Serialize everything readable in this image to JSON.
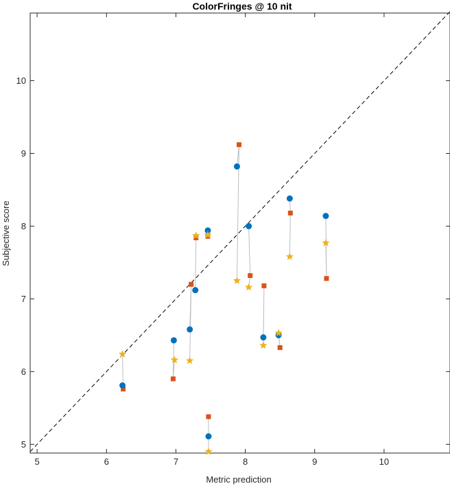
{
  "chart_data": {
    "type": "scatter",
    "title": "ColorFringes @ 10 nit",
    "xlabel": "Metric prediction",
    "ylabel": "Subjective score",
    "xlim": [
      4.9,
      10.95
    ],
    "ylim": [
      4.88,
      10.93
    ],
    "xticks": [
      5,
      6,
      7,
      8,
      9,
      10
    ],
    "yticks": [
      5,
      6,
      7,
      8,
      9,
      10
    ],
    "grid": false,
    "reference_line": {
      "style": "dashed",
      "from": [
        4.9,
        4.9
      ],
      "to": [
        10.95,
        10.95
      ]
    },
    "colors": {
      "circle": "#0072BD",
      "square": "#D95319",
      "star": "#EDB120",
      "connector": "#BDBDBD",
      "reference": "#000000"
    },
    "groups": [
      {
        "circle": [
          6.23,
          5.81
        ],
        "square": [
          6.24,
          5.76
        ],
        "star": [
          6.23,
          6.24
        ]
      },
      {
        "circle": [
          6.97,
          6.43
        ],
        "square": [
          6.96,
          5.9
        ],
        "star": [
          6.98,
          6.16
        ]
      },
      {
        "circle": [
          7.2,
          6.58
        ],
        "square": [
          7.22,
          7.2
        ],
        "star": [
          7.2,
          6.15
        ]
      },
      {
        "circle": [
          7.28,
          7.12
        ],
        "square": [
          7.29,
          7.84
        ],
        "star": [
          7.29,
          7.87
        ]
      },
      {
        "circle": [
          7.46,
          7.94
        ],
        "square": [
          7.46,
          7.86
        ],
        "star": [
          7.46,
          7.88
        ]
      },
      {
        "circle": [
          7.47,
          5.11
        ],
        "square": [
          7.47,
          5.38
        ],
        "star": [
          7.47,
          4.9
        ]
      },
      {
        "circle": [
          7.88,
          8.82
        ],
        "square": [
          7.91,
          9.12
        ],
        "star": [
          7.88,
          7.25
        ]
      },
      {
        "circle": [
          8.05,
          8.0
        ],
        "square": [
          8.07,
          7.32
        ],
        "star": [
          8.05,
          7.16
        ]
      },
      {
        "circle": [
          8.26,
          6.47
        ],
        "square": [
          8.27,
          7.18
        ],
        "star": [
          8.26,
          6.36
        ]
      },
      {
        "circle": [
          8.48,
          6.5
        ],
        "square": [
          8.5,
          6.33
        ],
        "star": [
          8.48,
          6.53
        ]
      },
      {
        "circle": [
          8.64,
          8.38
        ],
        "square": [
          8.65,
          8.18
        ],
        "star": [
          8.64,
          7.58
        ]
      },
      {
        "circle": [
          9.16,
          8.14
        ],
        "square": [
          9.17,
          7.28
        ],
        "star": [
          9.16,
          7.77
        ]
      }
    ]
  }
}
